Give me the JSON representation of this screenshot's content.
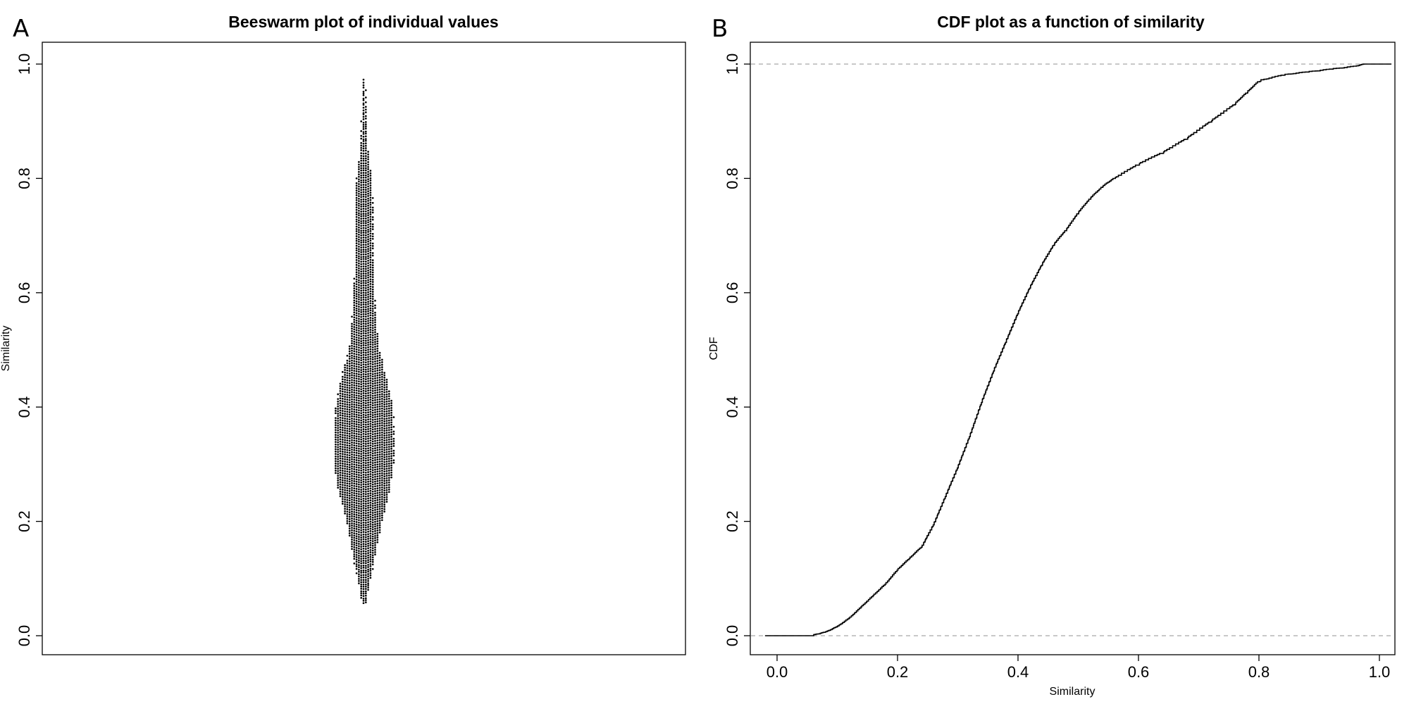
{
  "panels": {
    "a": {
      "letter": "A"
    },
    "b": {
      "letter": "B"
    }
  },
  "chart_data": [
    {
      "type": "scatter",
      "subtype": "beeswarm",
      "title": "Beeswarm plot of individual values",
      "xlabel": "",
      "ylabel": "Similarity",
      "ylim": [
        0.0,
        1.0
      ],
      "yticks": [
        "0.0",
        "0.2",
        "0.4",
        "0.6",
        "0.8",
        "1.0"
      ],
      "grid": false,
      "legend": "none",
      "point_color": "#000000",
      "n_points": 2600,
      "y_min": 0.055,
      "y_max": 0.975,
      "density_profile": {
        "y": [
          0.05,
          0.08,
          0.12,
          0.16,
          0.2,
          0.25,
          0.3,
          0.35,
          0.4,
          0.45,
          0.5,
          0.55,
          0.6,
          0.65,
          0.7,
          0.75,
          0.8,
          0.85,
          0.9,
          0.95,
          0.98
        ],
        "relative_density": [
          0.05,
          0.15,
          0.3,
          0.45,
          0.6,
          0.85,
          1.0,
          1.0,
          0.95,
          0.75,
          0.5,
          0.4,
          0.35,
          0.3,
          0.3,
          0.3,
          0.25,
          0.12,
          0.08,
          0.05,
          0.02
        ]
      }
    },
    {
      "type": "line",
      "subtype": "empirical-cdf",
      "title": "CDF plot as a function of similarity",
      "xlabel": "Similarity",
      "ylabel": "CDF",
      "xlim": [
        0.0,
        1.0
      ],
      "ylim": [
        0.0,
        1.0
      ],
      "xticks": [
        "0.0",
        "0.2",
        "0.4",
        "0.6",
        "0.8",
        "1.0"
      ],
      "yticks": [
        "0.0",
        "0.2",
        "0.4",
        "0.6",
        "0.8",
        "1.0"
      ],
      "grid": false,
      "legend": "none",
      "reference_lines": [
        0.0,
        1.0
      ],
      "reference_line_color": "#a6a6a6",
      "line_color": "#000000",
      "series": [
        {
          "x": [
            -0.02,
            0.06,
            0.08,
            0.1,
            0.12,
            0.14,
            0.16,
            0.18,
            0.2,
            0.22,
            0.24,
            0.26,
            0.28,
            0.3,
            0.32,
            0.34,
            0.36,
            0.38,
            0.4,
            0.42,
            0.44,
            0.46,
            0.48,
            0.5,
            0.52,
            0.54,
            0.56,
            0.6,
            0.64,
            0.68,
            0.72,
            0.76,
            0.78,
            0.8,
            0.84,
            0.88,
            0.92,
            0.96,
            0.98,
            1.02
          ],
          "y": [
            0.0,
            0.0,
            0.005,
            0.015,
            0.03,
            0.05,
            0.07,
            0.09,
            0.115,
            0.135,
            0.155,
            0.195,
            0.245,
            0.295,
            0.35,
            0.41,
            0.465,
            0.515,
            0.565,
            0.61,
            0.65,
            0.685,
            0.71,
            0.74,
            0.765,
            0.785,
            0.8,
            0.825,
            0.845,
            0.87,
            0.9,
            0.93,
            0.95,
            0.97,
            0.98,
            0.985,
            0.99,
            0.995,
            1.0,
            1.0
          ]
        }
      ]
    }
  ]
}
